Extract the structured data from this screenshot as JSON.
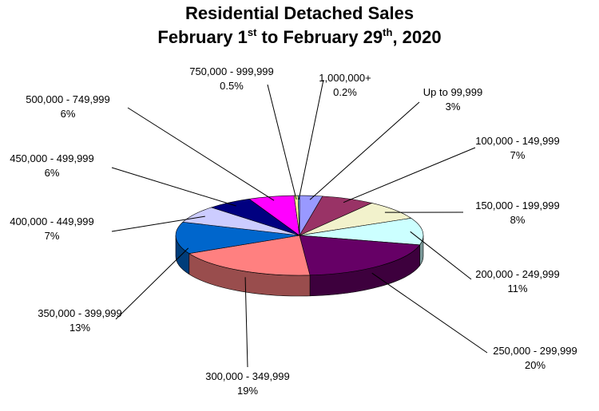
{
  "chart_data": {
    "type": "pie",
    "title": "Residential Detached Sales",
    "subtitle_parts": [
      "February 1",
      "st",
      " to February 29",
      "th",
      ", 2020"
    ],
    "categories": [
      "Up to 99,999",
      "100,000 - 149,999",
      "150,000 - 199,999",
      "200,000 - 249,999",
      "250,000 - 299,999",
      "300,000 - 349,999",
      "350,000 - 399,999",
      "400,000 - 449,999",
      "450,000 - 499,999",
      "500,000 - 749,999",
      "750,000 - 999,999",
      "1,000,000+"
    ],
    "values": [
      3,
      7,
      8,
      11,
      20,
      19,
      13,
      7,
      6,
      6,
      0.5,
      0.2
    ],
    "value_labels": [
      "3%",
      "7%",
      "8%",
      "11%",
      "20%",
      "19%",
      "13%",
      "7%",
      "6%",
      "6%",
      "0.5%",
      "0.2%"
    ],
    "colors": [
      "#9999ff",
      "#993366",
      "#f2f2cc",
      "#ccffff",
      "#660066",
      "#ff8080",
      "#0066cc",
      "#ccccff",
      "#000080",
      "#ff00ff",
      "#ffff99",
      "#66ccff"
    ],
    "three_d": true
  }
}
